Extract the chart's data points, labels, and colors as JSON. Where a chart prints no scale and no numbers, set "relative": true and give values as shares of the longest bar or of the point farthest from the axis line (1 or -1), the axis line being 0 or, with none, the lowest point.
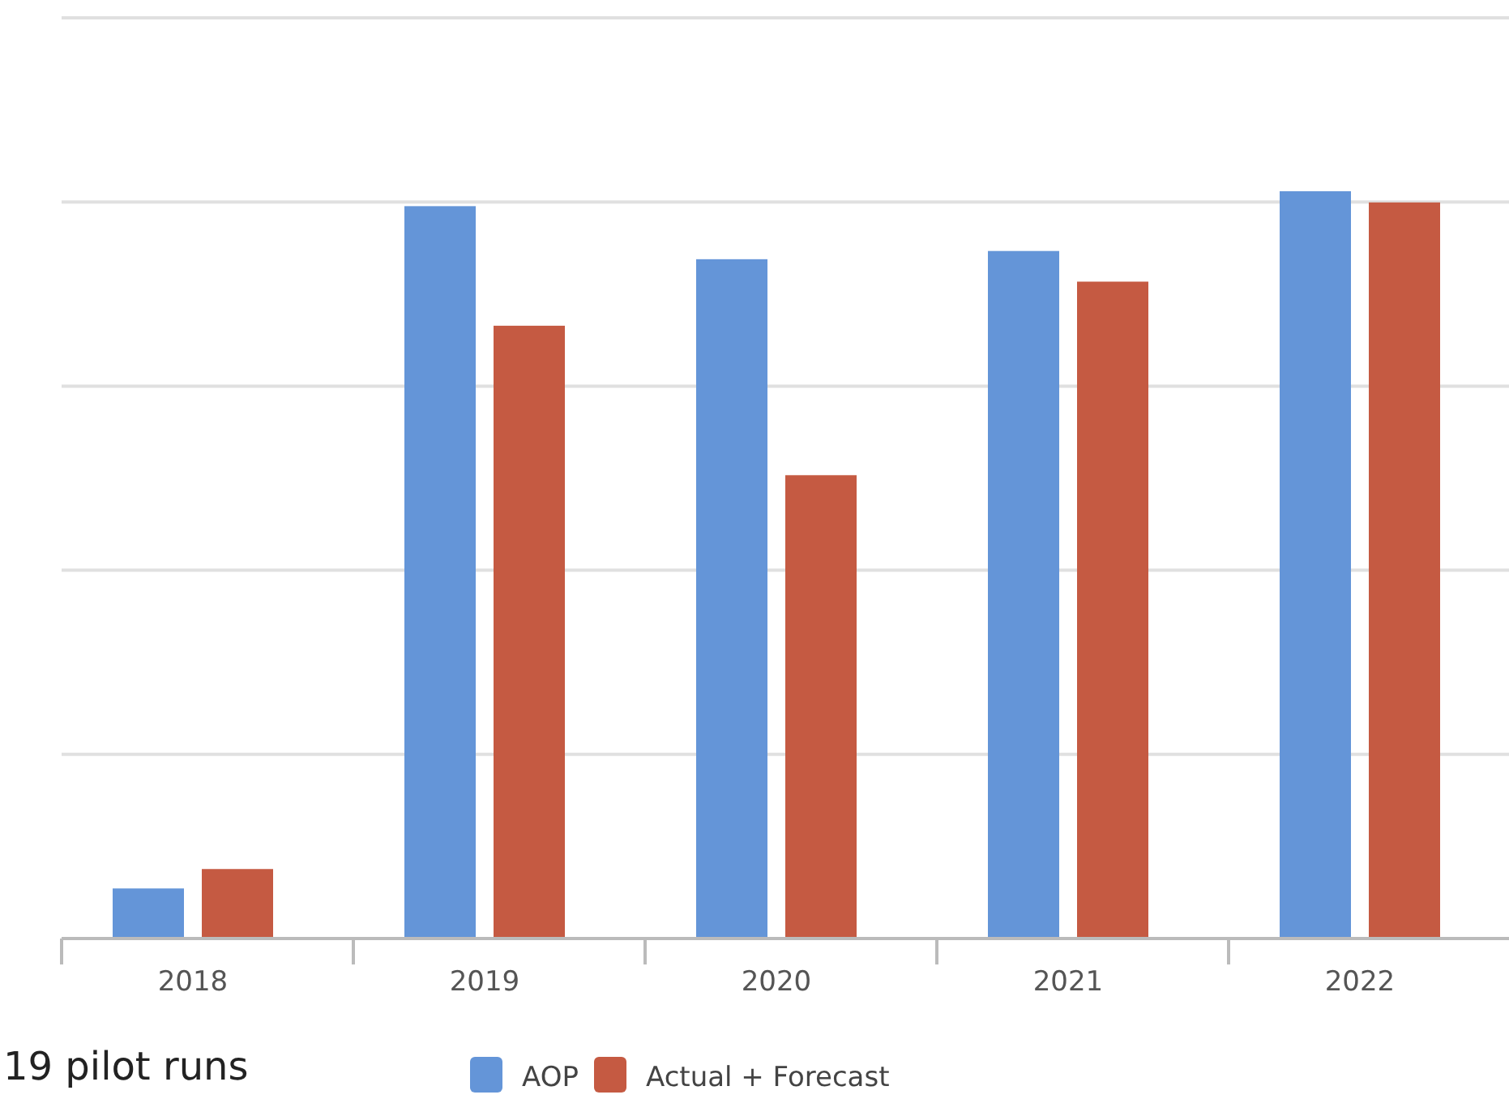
{
  "chart_data": {
    "type": "bar",
    "relative": true,
    "categories": [
      "2018",
      "2019",
      "2020",
      "2021",
      "2022"
    ],
    "series": [
      {
        "name": "AOP",
        "color": "#6495d8",
        "values": [
          0.067,
          0.98,
          0.909,
          0.92,
          1
        ]
      },
      {
        "name": "Actual + Forecast",
        "color": "#c55a42",
        "values": [
          0.093,
          0.82,
          0.62,
          0.879,
          0.985
        ]
      }
    ],
    "grid": true,
    "legend": "bottom",
    "annotations": [
      "19 pilot runs"
    ]
  }
}
